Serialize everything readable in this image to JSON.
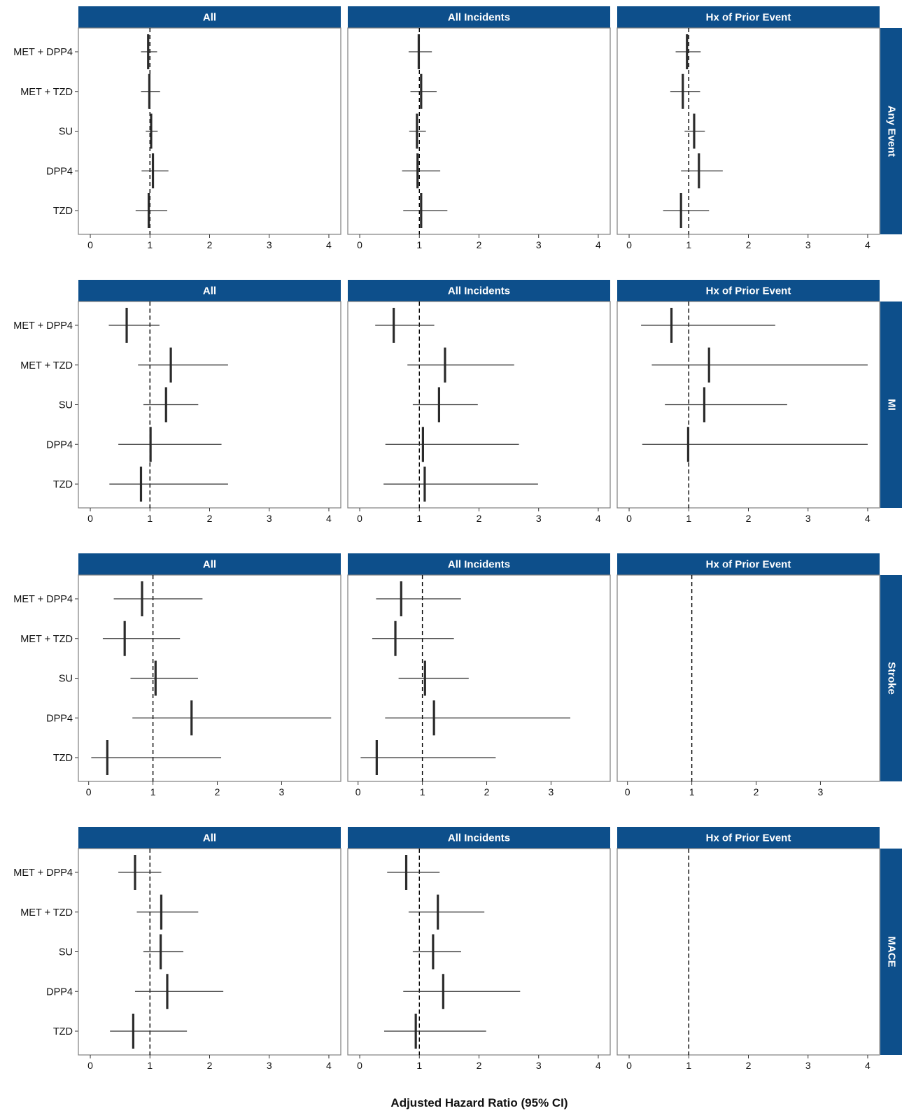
{
  "chart_data": {
    "type": "forest",
    "xlabel": "Adjusted Hazard Ratio (95% CI)",
    "ylabel": "",
    "reference_line": 1,
    "columns": [
      "All",
      "All Incidents",
      "Hx of Prior Event"
    ],
    "categories": [
      "MET + DPP4",
      "MET + TZD",
      "SU",
      "DPP4",
      "TZD"
    ],
    "rows": [
      {
        "label": "Any Event",
        "xlim": [
          -0.2,
          4.2
        ],
        "xticks": [
          0,
          1,
          2,
          3,
          4
        ],
        "panels": [
          {
            "points": [
              {
                "category": "MET + DPP4",
                "hr": 0.97,
                "lo": 0.85,
                "hi": 1.12
              },
              {
                "category": "MET + TZD",
                "hr": 0.99,
                "lo": 0.85,
                "hi": 1.17
              },
              {
                "category": "SU",
                "hr": 1.02,
                "lo": 0.93,
                "hi": 1.13
              },
              {
                "category": "DPP4",
                "hr": 1.05,
                "lo": 0.86,
                "hi": 1.31
              },
              {
                "category": "TZD",
                "hr": 0.98,
                "lo": 0.76,
                "hi": 1.29
              }
            ]
          },
          {
            "points": [
              {
                "category": "MET + DPP4",
                "hr": 0.99,
                "lo": 0.82,
                "hi": 1.21
              },
              {
                "category": "MET + TZD",
                "hr": 1.03,
                "lo": 0.85,
                "hi": 1.29
              },
              {
                "category": "SU",
                "hr": 0.96,
                "lo": 0.83,
                "hi": 1.11
              },
              {
                "category": "DPP4",
                "hr": 0.97,
                "lo": 0.71,
                "hi": 1.35
              },
              {
                "category": "TZD",
                "hr": 1.03,
                "lo": 0.73,
                "hi": 1.47
              }
            ]
          },
          {
            "points": [
              {
                "category": "MET + DPP4",
                "hr": 0.97,
                "lo": 0.78,
                "hi": 1.2
              },
              {
                "category": "MET + TZD",
                "hr": 0.9,
                "lo": 0.69,
                "hi": 1.19
              },
              {
                "category": "SU",
                "hr": 1.09,
                "lo": 0.93,
                "hi": 1.27
              },
              {
                "category": "DPP4",
                "hr": 1.17,
                "lo": 0.87,
                "hi": 1.57
              },
              {
                "category": "TZD",
                "hr": 0.87,
                "lo": 0.57,
                "hi": 1.34
              }
            ]
          }
        ]
      },
      {
        "label": "MI",
        "xlim": [
          -0.2,
          4.2
        ],
        "xticks": [
          0,
          1,
          2,
          3,
          4
        ],
        "panels": [
          {
            "points": [
              {
                "category": "MET + DPP4",
                "hr": 0.61,
                "lo": 0.31,
                "hi": 1.16
              },
              {
                "category": "MET + TZD",
                "hr": 1.35,
                "lo": 0.8,
                "hi": 2.31
              },
              {
                "category": "SU",
                "hr": 1.27,
                "lo": 0.89,
                "hi": 1.81
              },
              {
                "category": "DPP4",
                "hr": 1.01,
                "lo": 0.47,
                "hi": 2.2
              },
              {
                "category": "TZD",
                "hr": 0.85,
                "lo": 0.32,
                "hi": 2.31
              }
            ]
          },
          {
            "points": [
              {
                "category": "MET + DPP4",
                "hr": 0.57,
                "lo": 0.26,
                "hi": 1.25
              },
              {
                "category": "MET + TZD",
                "hr": 1.43,
                "lo": 0.8,
                "hi": 2.59
              },
              {
                "category": "SU",
                "hr": 1.33,
                "lo": 0.89,
                "hi": 1.98
              },
              {
                "category": "DPP4",
                "hr": 1.06,
                "lo": 0.43,
                "hi": 2.67
              },
              {
                "category": "TZD",
                "hr": 1.09,
                "lo": 0.4,
                "hi": 2.99
              }
            ]
          },
          {
            "points": [
              {
                "category": "MET + DPP4",
                "hr": 0.71,
                "lo": 0.2,
                "hi": 2.45
              },
              {
                "category": "MET + TZD",
                "hr": 1.34,
                "lo": 0.38,
                "hi": 4.0
              },
              {
                "category": "SU",
                "hr": 1.26,
                "lo": 0.6,
                "hi": 2.65
              },
              {
                "category": "DPP4",
                "hr": 0.99,
                "lo": 0.22,
                "hi": 4.0
              }
            ]
          }
        ]
      },
      {
        "label": "Stroke",
        "xlim": [
          -0.16,
          3.92
        ],
        "xticks": [
          0,
          1,
          2,
          3
        ],
        "panels": [
          {
            "points": [
              {
                "category": "MET + DPP4",
                "hr": 0.83,
                "lo": 0.39,
                "hi": 1.77
              },
              {
                "category": "MET + TZD",
                "hr": 0.56,
                "lo": 0.22,
                "hi": 1.42
              },
              {
                "category": "SU",
                "hr": 1.04,
                "lo": 0.65,
                "hi": 1.7
              },
              {
                "category": "DPP4",
                "hr": 1.6,
                "lo": 0.68,
                "hi": 3.77
              },
              {
                "category": "TZD",
                "hr": 0.29,
                "lo": 0.04,
                "hi": 2.06
              }
            ]
          },
          {
            "points": [
              {
                "category": "MET + DPP4",
                "hr": 0.67,
                "lo": 0.28,
                "hi": 1.6
              },
              {
                "category": "MET + TZD",
                "hr": 0.58,
                "lo": 0.22,
                "hi": 1.49
              },
              {
                "category": "SU",
                "hr": 1.04,
                "lo": 0.63,
                "hi": 1.72
              },
              {
                "category": "DPP4",
                "hr": 1.18,
                "lo": 0.42,
                "hi": 3.3
              },
              {
                "category": "TZD",
                "hr": 0.29,
                "lo": 0.04,
                "hi": 2.14
              }
            ]
          },
          {
            "points": []
          }
        ]
      },
      {
        "label": "MACE",
        "xlim": [
          -0.2,
          4.2
        ],
        "xticks": [
          0,
          1,
          2,
          3,
          4
        ],
        "panels": [
          {
            "points": [
              {
                "category": "MET + DPP4",
                "hr": 0.75,
                "lo": 0.47,
                "hi": 1.19
              },
              {
                "category": "MET + TZD",
                "hr": 1.19,
                "lo": 0.78,
                "hi": 1.81
              },
              {
                "category": "SU",
                "hr": 1.18,
                "lo": 0.89,
                "hi": 1.56
              },
              {
                "category": "DPP4",
                "hr": 1.29,
                "lo": 0.75,
                "hi": 2.23
              },
              {
                "category": "TZD",
                "hr": 0.72,
                "lo": 0.33,
                "hi": 1.62
              }
            ]
          },
          {
            "points": [
              {
                "category": "MET + DPP4",
                "hr": 0.78,
                "lo": 0.46,
                "hi": 1.34
              },
              {
                "category": "MET + TZD",
                "hr": 1.31,
                "lo": 0.82,
                "hi": 2.09
              },
              {
                "category": "SU",
                "hr": 1.23,
                "lo": 0.89,
                "hi": 1.7
              },
              {
                "category": "DPP4",
                "hr": 1.4,
                "lo": 0.73,
                "hi": 2.69
              },
              {
                "category": "TZD",
                "hr": 0.94,
                "lo": 0.41,
                "hi": 2.12
              }
            ]
          },
          {
            "points": []
          }
        ]
      }
    ]
  }
}
